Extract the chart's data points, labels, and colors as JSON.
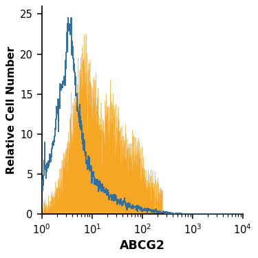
{
  "title": "",
  "xlabel": "ABCG2",
  "ylabel": "Relative Cell Number",
  "ylim": [
    0,
    26
  ],
  "yticks": [
    0,
    5,
    10,
    15,
    20,
    25
  ],
  "background_color": "#ffffff",
  "blue_color": "#2e6fa3",
  "orange_color": "#f5a623",
  "blue_data_log": [
    0.0,
    0.02,
    0.04,
    0.06,
    0.08,
    0.1,
    0.12,
    0.14,
    0.16,
    0.18,
    0.2,
    0.22,
    0.24,
    0.26,
    0.28,
    0.3,
    0.32,
    0.34,
    0.36,
    0.38,
    0.4,
    0.42,
    0.44,
    0.46,
    0.48,
    0.5,
    0.52,
    0.54,
    0.56,
    0.58,
    0.6,
    0.62,
    0.64,
    0.66,
    0.68,
    0.7,
    0.72,
    0.74,
    0.76,
    0.78,
    0.8,
    0.82,
    0.84,
    0.86,
    0.88,
    0.9,
    0.92,
    0.94,
    0.96,
    0.98,
    1.0,
    1.05,
    1.1,
    1.15,
    1.2,
    1.25,
    1.3,
    1.35,
    1.4,
    1.5,
    1.6,
    1.7,
    1.8,
    1.9,
    2.0,
    2.2,
    2.4,
    2.6,
    2.8,
    3.0,
    4.0
  ],
  "blue_vals": [
    4.0,
    3.5,
    4.5,
    7.8,
    5.2,
    5.0,
    6.5,
    5.8,
    7.2,
    8.0,
    8.5,
    9.0,
    8.8,
    10.2,
    11.5,
    12.8,
    13.0,
    12.5,
    13.8,
    15.2,
    16.3,
    15.8,
    16.5,
    17.0,
    19.5,
    21.0,
    22.5,
    23.8,
    24.5,
    23.5,
    22.0,
    21.0,
    19.0,
    17.5,
    16.0,
    14.5,
    13.0,
    12.5,
    11.5,
    11.0,
    10.0,
    9.5,
    8.5,
    8.0,
    7.5,
    6.8,
    6.2,
    6.5,
    6.0,
    5.5,
    5.0,
    4.5,
    4.0,
    3.8,
    3.5,
    3.2,
    2.8,
    2.5,
    2.2,
    1.8,
    1.5,
    1.2,
    1.0,
    0.8,
    0.6,
    0.4,
    0.2,
    0.1,
    0.05,
    0.0,
    0.0
  ],
  "orange_data_log": [
    0.0,
    0.04,
    0.08,
    0.12,
    0.16,
    0.2,
    0.24,
    0.28,
    0.32,
    0.36,
    0.4,
    0.44,
    0.48,
    0.52,
    0.56,
    0.6,
    0.64,
    0.68,
    0.72,
    0.76,
    0.8,
    0.84,
    0.88,
    0.92,
    0.96,
    1.0,
    1.04,
    1.08,
    1.12,
    1.16,
    1.2,
    1.24,
    1.28,
    1.32,
    1.36,
    1.4,
    1.44,
    1.48,
    1.52,
    1.56,
    1.6,
    1.64,
    1.68,
    1.72,
    1.76,
    1.8,
    1.85,
    1.9,
    1.95,
    2.0,
    2.05,
    2.1,
    2.15,
    2.2,
    2.25,
    2.3,
    2.4,
    2.6,
    2.8,
    3.0,
    4.0
  ],
  "orange_vals": [
    0.5,
    0.8,
    1.0,
    1.2,
    1.5,
    1.8,
    2.2,
    2.8,
    3.5,
    4.5,
    5.5,
    6.5,
    7.5,
    8.5,
    9.5,
    11.0,
    12.5,
    13.8,
    15.2,
    16.5,
    18.0,
    19.0,
    18.5,
    17.8,
    16.5,
    15.5,
    14.5,
    14.0,
    13.0,
    12.2,
    11.5,
    11.8,
    12.5,
    13.0,
    12.8,
    12.2,
    11.5,
    10.8,
    10.2,
    9.5,
    9.0,
    8.5,
    8.0,
    7.5,
    7.8,
    8.5,
    8.0,
    7.2,
    6.5,
    5.8,
    5.2,
    4.8,
    4.2,
    3.8,
    3.2,
    2.8,
    2.0,
    1.5,
    1.0,
    0.5,
    0.0
  ],
  "figsize": [
    3.0,
    3.0
  ],
  "dpi": 125
}
